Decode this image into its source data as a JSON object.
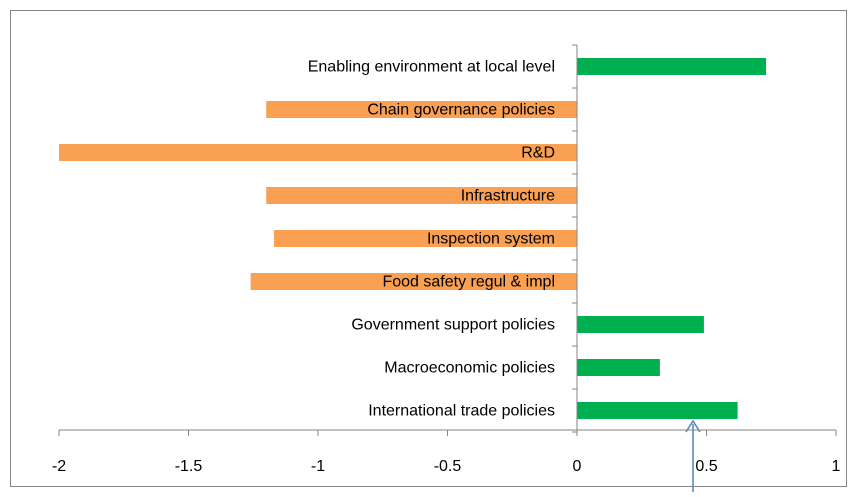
{
  "chart_data": {
    "type": "barh",
    "categories": [
      "Enabling environment at local level",
      "Chain governance policies",
      "R&D",
      "Infrastructure",
      "Inspection system",
      "Food safety regul & impl",
      "Government support policies",
      "Macroeconomic policies",
      "International trade policies"
    ],
    "values": [
      0.73,
      -1.2,
      -2.0,
      -1.2,
      -1.17,
      -1.26,
      0.49,
      0.32,
      0.62
    ],
    "colors": [
      "#00b050",
      "#f9a053",
      "#f9a053",
      "#f9a053",
      "#f9a053",
      "#f9a053",
      "#00b050",
      "#00b050",
      "#00b050"
    ],
    "xlim": [
      -2,
      1
    ],
    "xticks": [
      -2,
      -1.5,
      -1,
      -0.5,
      0,
      0.5,
      1
    ],
    "grid": false
  }
}
